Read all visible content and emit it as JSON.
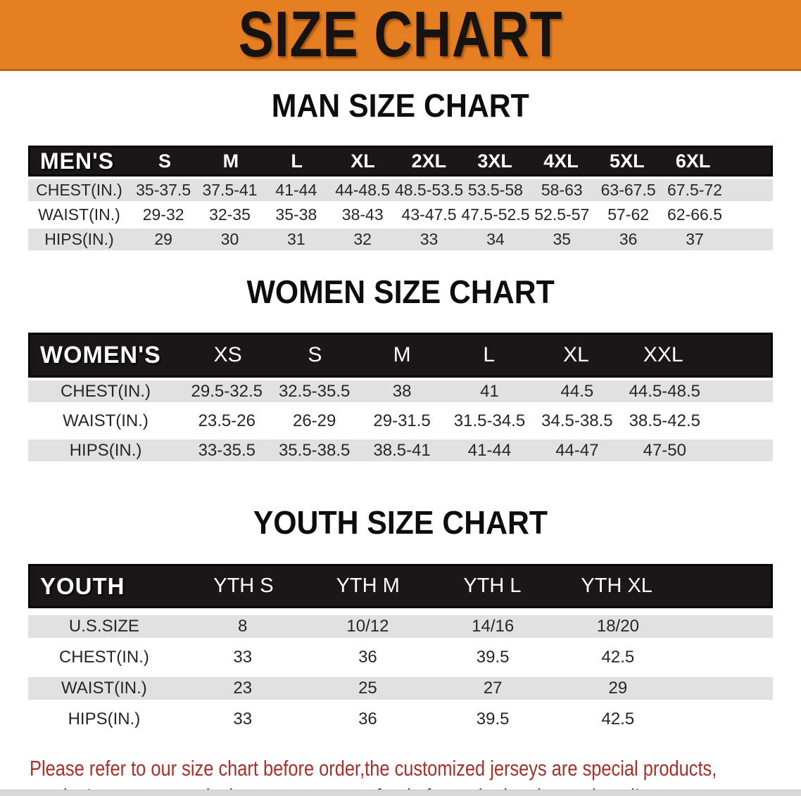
{
  "banner": {
    "title": "SIZE CHART",
    "bg_color": "#E67E22",
    "text_color": "#171311"
  },
  "sections": [
    {
      "id": "men",
      "title": "MAN SIZE CHART",
      "header_label": "MEN'S",
      "columns": [
        "S",
        "M",
        "L",
        "XL",
        "2XL",
        "3XL",
        "4XL",
        "5XL",
        "6XL"
      ],
      "rows": [
        {
          "label": "CHEST(IN.)",
          "values": [
            "35-37.5",
            "37.5-41",
            "41-44",
            "44-48.5",
            "48.5-53.5",
            "53.5-58",
            "58-63",
            "63-67.5",
            "67.5-72"
          ]
        },
        {
          "label": "WAIST(IN.)",
          "values": [
            "29-32",
            "32-35",
            "35-38",
            "38-43",
            "43-47.5",
            "47.5-52.5",
            "52.5-57",
            "57-62",
            "62-66.5"
          ]
        },
        {
          "label": "HIPS(IN.)",
          "values": [
            "29",
            "30",
            "31",
            "32",
            "33",
            "34",
            "35",
            "36",
            "37"
          ]
        }
      ]
    },
    {
      "id": "women",
      "title": "WOMEN SIZE CHART",
      "header_label": "WOMEN'S",
      "columns": [
        "XS",
        "S",
        "M",
        "L",
        "XL",
        "XXL"
      ],
      "rows": [
        {
          "label": "CHEST(IN.)",
          "values": [
            "29.5-32.5",
            "32.5-35.5",
            "38",
            "41",
            "44.5",
            "44.5-48.5"
          ]
        },
        {
          "label": "WAIST(IN.)",
          "values": [
            "23.5-26",
            "26-29",
            "29-31.5",
            "31.5-34.5",
            "34.5-38.5",
            "38.5-42.5"
          ]
        },
        {
          "label": "HIPS(IN.)",
          "values": [
            "33-35.5",
            "35.5-38.5",
            "38.5-41",
            "41-44",
            "44-47",
            "47-50"
          ]
        }
      ]
    },
    {
      "id": "youth",
      "title": "YOUTH SIZE CHART",
      "header_label": "YOUTH",
      "columns": [
        "YTH S",
        "YTH M",
        "YTH L",
        "YTH XL"
      ],
      "rows": [
        {
          "label": "U.S.SIZE",
          "values": [
            "8",
            "10/12",
            "14/16",
            "18/20"
          ]
        },
        {
          "label": "CHEST(IN.)",
          "values": [
            "33",
            "36",
            "39.5",
            "42.5"
          ]
        },
        {
          "label": "WAIST(IN.)",
          "values": [
            "23",
            "25",
            "27",
            "29"
          ]
        },
        {
          "label": "HIPS(IN.)",
          "values": [
            "33",
            "36",
            "39.5",
            "42.5"
          ]
        }
      ]
    }
  ],
  "table_colors": {
    "header_bar": "#1b1718",
    "header_text": "#ffffff",
    "shaded_row": "#e2e1e2",
    "value_text": "#262626"
  },
  "disclaimer": {
    "line1": "Please refer to our size chart before order,the customized jerseys are special products,",
    "line2": "we don't accept cancel, change, teturn or refund after order has been placed!",
    "color": "#a93029"
  }
}
